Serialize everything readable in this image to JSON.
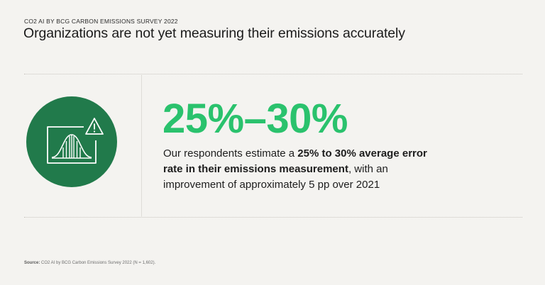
{
  "header": {
    "kicker": "CO2 AI BY BCG CARBON EMISSIONS SURVEY 2022",
    "title": "Organizations are not yet measuring their emissions accurately"
  },
  "stat": {
    "value": "25%–30%",
    "text_before": "Our respondents estimate a ",
    "text_bold": "25% to 30% average error rate in their emissions measurement",
    "text_after": ", with an improvement of approximately 5 pp over 2021"
  },
  "icon": {
    "name": "bell-curve-warning-icon",
    "circle_color": "#217a4b"
  },
  "footer": {
    "source_label": "Source:",
    "source_text": " CO2 AI by BCG Carbon Emissions Survey 2022 (N = 1,602)."
  },
  "colors": {
    "accent_green": "#2ac26d",
    "dark_green": "#217a4b",
    "background": "#f4f3f0"
  }
}
